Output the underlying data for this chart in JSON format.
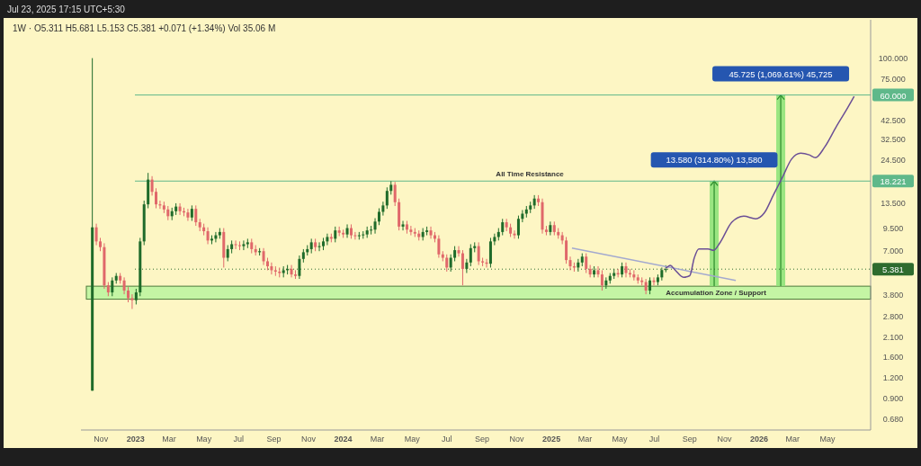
{
  "chart_data": {
    "type": "candlestick",
    "title": "1W · O5.311 H5.681 L5.153 C5.381 +0.071 (+1.34%) Vol 35.06 M",
    "subtitle": "Jul 23, 2025 17:15 UTC+5:30",
    "log": "y",
    "grid": false,
    "xlim": [
      "2022-09-27",
      "2026-07-16"
    ],
    "xticks": [
      {
        "value": "2022-11-01",
        "label": "Nov"
      },
      {
        "value": "2023-01-01",
        "label": "2023"
      },
      {
        "value": "2023-03-01",
        "label": "Mar"
      },
      {
        "value": "2023-05-01",
        "label": "May"
      },
      {
        "value": "2023-07-01",
        "label": "Jul"
      },
      {
        "value": "2023-09-01",
        "label": "Sep"
      },
      {
        "value": "2023-11-01",
        "label": "Nov"
      },
      {
        "value": "2024-01-01",
        "label": "2024"
      },
      {
        "value": "2024-03-01",
        "label": "Mar"
      },
      {
        "value": "2024-05-01",
        "label": "May"
      },
      {
        "value": "2024-07-01",
        "label": "Jul"
      },
      {
        "value": "2024-09-01",
        "label": "Sep"
      },
      {
        "value": "2024-11-01",
        "label": "Nov"
      },
      {
        "value": "2025-01-01",
        "label": "2025"
      },
      {
        "value": "2025-03-01",
        "label": "Mar"
      },
      {
        "value": "2025-05-01",
        "label": "May"
      },
      {
        "value": "2025-07-01",
        "label": "Jul"
      },
      {
        "value": "2025-09-01",
        "label": "Sep"
      },
      {
        "value": "2025-11-01",
        "label": "Nov"
      },
      {
        "value": "2026-01-01",
        "label": "2026"
      },
      {
        "value": "2026-03-01",
        "label": "Mar"
      },
      {
        "value": "2026-05-01",
        "label": "May"
      }
    ],
    "ylim": [
      0.58,
      170
    ],
    "yticks": [
      {
        "value": 0.68,
        "label": "0.680"
      },
      {
        "value": 0.9,
        "label": "0.900"
      },
      {
        "value": 1.2,
        "label": "1.200"
      },
      {
        "value": 1.6,
        "label": "1.600"
      },
      {
        "value": 2.1,
        "label": "2.100"
      },
      {
        "value": 2.8,
        "label": "2.800"
      },
      {
        "value": 3.8,
        "label": "3.800"
      },
      {
        "value": 7,
        "label": "7.000"
      },
      {
        "value": 9.5,
        "label": "9.500"
      },
      {
        "value": 13.5,
        "label": "13.500"
      },
      {
        "value": 24.5,
        "label": "24.500"
      },
      {
        "value": 32.5,
        "label": "32.500"
      },
      {
        "value": 42.5,
        "label": "42.500"
      },
      {
        "value": 75,
        "label": "75.000"
      },
      {
        "value": 100,
        "label": "100.000"
      }
    ],
    "x": [
      "2022-10-17",
      "2022-10-24",
      "2022-10-31",
      "2022-11-07",
      "2022-11-14",
      "2022-11-21",
      "2022-11-28",
      "2022-12-05",
      "2022-12-12",
      "2022-12-19",
      "2022-12-26",
      "2023-01-02",
      "2023-01-09",
      "2023-01-16",
      "2023-01-23",
      "2023-01-30",
      "2023-02-06",
      "2023-02-13",
      "2023-02-20",
      "2023-02-27",
      "2023-03-06",
      "2023-03-13",
      "2023-03-20",
      "2023-03-27",
      "2023-04-03",
      "2023-04-10",
      "2023-04-17",
      "2023-04-24",
      "2023-05-01",
      "2023-05-08",
      "2023-05-15",
      "2023-05-22",
      "2023-05-29",
      "2023-06-05",
      "2023-06-12",
      "2023-06-19",
      "2023-06-26",
      "2023-07-03",
      "2023-07-10",
      "2023-07-17",
      "2023-07-24",
      "2023-07-31",
      "2023-08-07",
      "2023-08-14",
      "2023-08-21",
      "2023-08-28",
      "2023-09-04",
      "2023-09-11",
      "2023-09-18",
      "2023-09-25",
      "2023-10-02",
      "2023-10-09",
      "2023-10-16",
      "2023-10-23",
      "2023-10-30",
      "2023-11-06",
      "2023-11-13",
      "2023-11-20",
      "2023-11-27",
      "2023-12-04",
      "2023-12-11",
      "2023-12-18",
      "2023-12-25",
      "2024-01-01",
      "2024-01-08",
      "2024-01-15",
      "2024-01-22",
      "2024-01-29",
      "2024-02-05",
      "2024-02-12",
      "2024-02-19",
      "2024-02-26",
      "2024-03-04",
      "2024-03-11",
      "2024-03-18",
      "2024-03-25",
      "2024-04-01",
      "2024-04-08",
      "2024-04-15",
      "2024-04-22",
      "2024-04-29",
      "2024-05-06",
      "2024-05-13",
      "2024-05-20",
      "2024-05-27",
      "2024-06-03",
      "2024-06-10",
      "2024-06-17",
      "2024-06-24",
      "2024-07-01",
      "2024-07-08",
      "2024-07-15",
      "2024-07-22",
      "2024-07-29",
      "2024-08-05",
      "2024-08-12",
      "2024-08-19",
      "2024-08-26",
      "2024-09-02",
      "2024-09-09",
      "2024-09-16",
      "2024-09-23",
      "2024-09-30",
      "2024-10-07",
      "2024-10-14",
      "2024-10-21",
      "2024-10-28",
      "2024-11-04",
      "2024-11-11",
      "2024-11-18",
      "2024-11-25",
      "2024-12-02",
      "2024-12-09",
      "2024-12-16",
      "2024-12-23",
      "2024-12-30",
      "2025-01-06",
      "2025-01-13",
      "2025-01-20",
      "2025-01-27",
      "2025-02-03",
      "2025-02-10",
      "2025-02-17",
      "2025-02-24",
      "2025-03-03",
      "2025-03-10",
      "2025-03-17",
      "2025-03-24",
      "2025-03-31",
      "2025-04-07",
      "2025-04-14",
      "2025-04-21",
      "2025-04-28",
      "2025-05-05",
      "2025-05-12",
      "2025-05-19",
      "2025-05-26",
      "2025-06-02",
      "2025-06-09",
      "2025-06-16",
      "2025-06-23",
      "2025-06-30",
      "2025-07-07",
      "2025-07-14",
      "2025-07-21"
    ],
    "ohlc": [
      [
        1.0,
        100,
        1.0,
        9.6
      ],
      [
        9.6,
        10.1,
        7.5,
        7.9
      ],
      [
        7.9,
        8.3,
        6.9,
        7.3
      ],
      [
        7.3,
        7.7,
        4.1,
        4.3
      ],
      [
        4.3,
        4.5,
        3.7,
        3.9
      ],
      [
        3.9,
        4.8,
        3.7,
        4.6
      ],
      [
        4.6,
        5.1,
        4.4,
        4.9
      ],
      [
        4.9,
        5.1,
        4.4,
        4.6
      ],
      [
        4.6,
        4.8,
        3.8,
        4.0
      ],
      [
        4.0,
        4.2,
        3.4,
        3.6
      ],
      [
        3.6,
        3.8,
        3.1,
        3.5
      ],
      [
        3.5,
        4.1,
        3.3,
        3.9
      ],
      [
        3.9,
        8.3,
        3.7,
        7.9
      ],
      [
        7.9,
        13.9,
        7.5,
        13.2
      ],
      [
        13.2,
        20.4,
        12.5,
        18.6
      ],
      [
        18.6,
        19.5,
        14.9,
        15.7
      ],
      [
        15.7,
        16.5,
        12.5,
        13.2
      ],
      [
        13.2,
        13.9,
        12.4,
        13.0
      ],
      [
        13.0,
        13.7,
        11.7,
        12.3
      ],
      [
        12.3,
        12.9,
        10.6,
        11.2
      ],
      [
        11.2,
        12.6,
        10.6,
        12.0
      ],
      [
        12.0,
        13.4,
        11.4,
        12.8
      ],
      [
        12.8,
        13.4,
        11.4,
        12.0
      ],
      [
        12.0,
        12.6,
        11.2,
        11.8
      ],
      [
        11.8,
        12.4,
        10.5,
        11.0
      ],
      [
        11.0,
        13.0,
        10.5,
        12.4
      ],
      [
        12.4,
        13.0,
        9.8,
        10.3
      ],
      [
        10.3,
        10.8,
        9.1,
        9.6
      ],
      [
        9.6,
        10.1,
        8.6,
        9.1
      ],
      [
        9.1,
        9.6,
        7.6,
        8.0
      ],
      [
        8.0,
        8.6,
        7.6,
        8.2
      ],
      [
        8.2,
        9.0,
        7.8,
        8.6
      ],
      [
        8.6,
        9.5,
        8.2,
        9.0
      ],
      [
        9.0,
        9.5,
        5.5,
        6.3
      ],
      [
        6.3,
        7.5,
        6.0,
        7.1
      ],
      [
        7.1,
        8.0,
        6.7,
        7.6
      ],
      [
        7.6,
        8.0,
        7.1,
        7.5
      ],
      [
        7.5,
        7.9,
        7.0,
        7.4
      ],
      [
        7.4,
        8.0,
        7.0,
        7.6
      ],
      [
        7.6,
        8.2,
        7.2,
        7.8
      ],
      [
        7.8,
        8.2,
        6.7,
        7.1
      ],
      [
        7.1,
        7.5,
        6.5,
        6.8
      ],
      [
        6.8,
        7.2,
        6.5,
        6.9
      ],
      [
        6.9,
        7.2,
        5.7,
        6.0
      ],
      [
        6.0,
        6.3,
        5.3,
        5.6
      ],
      [
        5.6,
        5.9,
        5.0,
        5.3
      ],
      [
        5.3,
        5.6,
        4.9,
        5.2
      ],
      [
        5.2,
        5.5,
        4.8,
        5.1
      ],
      [
        5.1,
        5.6,
        4.8,
        5.3
      ],
      [
        5.3,
        5.7,
        5.0,
        5.4
      ],
      [
        5.4,
        5.7,
        4.8,
        5.0
      ],
      [
        5.0,
        5.3,
        4.7,
        4.9
      ],
      [
        4.9,
        6.5,
        4.7,
        6.2
      ],
      [
        6.2,
        7.1,
        5.9,
        6.8
      ],
      [
        6.8,
        7.5,
        6.5,
        7.1
      ],
      [
        7.1,
        8.2,
        6.7,
        7.8
      ],
      [
        7.8,
        8.2,
        6.9,
        7.3
      ],
      [
        7.3,
        7.8,
        6.9,
        7.4
      ],
      [
        7.4,
        8.3,
        7.0,
        7.9
      ],
      [
        7.9,
        8.8,
        7.5,
        8.4
      ],
      [
        8.4,
        8.8,
        7.8,
        8.2
      ],
      [
        8.2,
        9.7,
        7.8,
        9.2
      ],
      [
        9.2,
        9.7,
        8.5,
        8.9
      ],
      [
        8.9,
        9.3,
        8.3,
        8.7
      ],
      [
        8.7,
        10.0,
        8.3,
        9.5
      ],
      [
        9.5,
        10.0,
        8.2,
        8.6
      ],
      [
        8.6,
        9.0,
        8.1,
        8.5
      ],
      [
        8.5,
        9.0,
        8.1,
        8.6
      ],
      [
        8.6,
        9.1,
        8.2,
        8.7
      ],
      [
        8.7,
        9.7,
        8.3,
        9.2
      ],
      [
        9.2,
        9.8,
        8.7,
        9.3
      ],
      [
        9.3,
        10.9,
        8.8,
        10.4
      ],
      [
        10.4,
        12.5,
        9.9,
        11.9
      ],
      [
        11.9,
        13.7,
        11.3,
        13.0
      ],
      [
        13.0,
        16.7,
        12.4,
        15.9
      ],
      [
        15.9,
        18.2,
        15.1,
        17.3
      ],
      [
        17.3,
        18.0,
        12.9,
        13.6
      ],
      [
        13.6,
        14.3,
        9.2,
        9.7
      ],
      [
        9.7,
        10.5,
        9.2,
        10.0
      ],
      [
        10.0,
        10.5,
        8.8,
        9.3
      ],
      [
        9.3,
        9.8,
        8.6,
        9.0
      ],
      [
        9.0,
        9.5,
        8.4,
        8.8
      ],
      [
        8.8,
        9.2,
        8.0,
        8.4
      ],
      [
        8.4,
        9.5,
        8.0,
        9.0
      ],
      [
        9.0,
        9.7,
        8.6,
        9.2
      ],
      [
        9.2,
        9.7,
        8.2,
        8.6
      ],
      [
        8.6,
        9.0,
        7.8,
        8.2
      ],
      [
        8.2,
        8.6,
        6.3,
        6.6
      ],
      [
        6.6,
        6.9,
        6.0,
        6.3
      ],
      [
        6.3,
        6.6,
        5.2,
        5.5
      ],
      [
        5.5,
        6.6,
        5.2,
        6.3
      ],
      [
        6.3,
        7.4,
        6.0,
        7.0
      ],
      [
        7.0,
        7.4,
        6.4,
        6.7
      ],
      [
        6.7,
        7.0,
        4.3,
        5.4
      ],
      [
        5.4,
        6.2,
        5.1,
        5.9
      ],
      [
        5.9,
        7.6,
        5.6,
        7.2
      ],
      [
        7.2,
        7.8,
        6.8,
        7.4
      ],
      [
        7.4,
        7.8,
        5.7,
        6.0
      ],
      [
        6.0,
        6.3,
        5.6,
        5.9
      ],
      [
        5.9,
        6.2,
        5.5,
        5.8
      ],
      [
        5.8,
        8.3,
        5.5,
        7.9
      ],
      [
        7.9,
        8.8,
        7.5,
        8.4
      ],
      [
        8.4,
        9.5,
        8.0,
        9.0
      ],
      [
        9.0,
        10.8,
        8.6,
        10.3
      ],
      [
        10.3,
        10.8,
        9.1,
        9.6
      ],
      [
        9.6,
        10.1,
        8.4,
        8.8
      ],
      [
        8.8,
        9.2,
        8.2,
        8.6
      ],
      [
        8.6,
        11.3,
        8.2,
        10.8
      ],
      [
        10.8,
        12.2,
        10.3,
        11.6
      ],
      [
        11.6,
        12.9,
        11.0,
        12.3
      ],
      [
        12.3,
        13.7,
        11.7,
        13.0
      ],
      [
        13.0,
        15.0,
        12.4,
        14.3
      ],
      [
        14.3,
        15.0,
        12.9,
        13.6
      ],
      [
        13.6,
        14.3,
        8.8,
        9.3
      ],
      [
        9.3,
        9.8,
        8.6,
        9.0
      ],
      [
        9.0,
        10.4,
        8.6,
        9.9
      ],
      [
        9.9,
        10.4,
        8.6,
        9.0
      ],
      [
        9.0,
        9.5,
        8.2,
        8.6
      ],
      [
        8.6,
        9.0,
        7.6,
        8.0
      ],
      [
        8.0,
        8.4,
        5.8,
        6.1
      ],
      [
        6.1,
        6.4,
        5.3,
        5.6
      ],
      [
        5.6,
        5.9,
        5.2,
        5.5
      ],
      [
        5.5,
        6.2,
        5.2,
        5.9
      ],
      [
        5.9,
        6.7,
        5.6,
        6.4
      ],
      [
        6.4,
        6.7,
        5.1,
        5.4
      ],
      [
        5.4,
        5.7,
        4.8,
        5.0
      ],
      [
        5.0,
        5.6,
        4.8,
        5.3
      ],
      [
        5.3,
        5.6,
        4.8,
        5.0
      ],
      [
        5.0,
        5.3,
        4.0,
        4.3
      ],
      [
        4.3,
        4.8,
        4.1,
        4.6
      ],
      [
        4.6,
        5.1,
        4.4,
        4.9
      ],
      [
        4.9,
        5.4,
        4.7,
        5.1
      ],
      [
        5.1,
        5.4,
        4.8,
        5.0
      ],
      [
        5.0,
        5.9,
        4.8,
        5.6
      ],
      [
        5.6,
        5.9,
        4.8,
        5.1
      ],
      [
        5.1,
        5.4,
        4.8,
        5.0
      ],
      [
        5.0,
        5.3,
        4.6,
        4.8
      ],
      [
        4.8,
        5.0,
        4.4,
        4.6
      ],
      [
        4.6,
        4.8,
        4.3,
        4.5
      ],
      [
        4.5,
        4.7,
        3.8,
        4.0
      ],
      [
        4.0,
        4.8,
        3.8,
        4.6
      ],
      [
        4.6,
        4.8,
        4.3,
        4.5
      ],
      [
        4.5,
        5.0,
        4.3,
        4.8
      ],
      [
        4.8,
        5.5,
        4.6,
        5.311
      ],
      [
        5.311,
        5.681,
        5.153,
        5.381
      ]
    ],
    "series": [
      {
        "type": "line",
        "color": "#a3a9cf",
        "x": [
          "2025-02-06",
          "2025-11-21"
        ],
        "values": [
          7.2,
          4.6
        ]
      },
      {
        "type": "line",
        "color": "#6b4f96",
        "x": [
          "2025-07-21",
          "2025-07-29",
          "2025-08-06",
          "2025-08-21",
          "2025-09-01",
          "2025-09-09",
          "2025-09-17",
          "2025-10-03",
          "2025-10-13",
          "2025-10-24",
          "2025-11-14",
          "2025-12-05",
          "2025-12-26",
          "2026-01-10",
          "2026-01-26",
          "2026-02-11",
          "2026-02-27",
          "2026-03-15",
          "2026-03-30",
          "2026-04-10",
          "2026-04-26",
          "2026-05-17",
          "2026-06-02",
          "2026-06-17"
        ],
        "values": [
          5.44,
          5.67,
          5.33,
          4.81,
          4.91,
          6.29,
          7.12,
          7.12,
          6.98,
          7.74,
          10.3,
          11.2,
          10.8,
          11.7,
          15.0,
          19.2,
          24.7,
          26.8,
          26.2,
          25.2,
          29.1,
          38.9,
          47.9,
          58.9
        ]
      }
    ],
    "bands": [
      {
        "axis": "y",
        "from": 3.55,
        "to": 4.25,
        "label": "Accumulation Zone / Support",
        "color": "#c4f5a4"
      }
    ],
    "ref_lines": [
      {
        "axis": "y",
        "value": 18.221,
        "label": "18.221",
        "color": "#5fb88a"
      },
      {
        "axis": "y",
        "value": 60,
        "label": "60.000",
        "color": "#5fb88a"
      },
      {
        "axis": "y",
        "value": 5.381,
        "label": "5.381",
        "color": "#2e6b2e",
        "line_style": "dotted"
      }
    ],
    "annotations": [
      {
        "text": "All Time Resistance",
        "x": "2024-11-24",
        "y": 18.221
      },
      {
        "text": "13.580 (314.80%) 13,580",
        "x": "2025-10-14",
        "y": 18.221
      },
      {
        "text": "45.725 (1,069.61%) 45,725",
        "x": "2026-02-08",
        "y": 60
      }
    ]
  }
}
